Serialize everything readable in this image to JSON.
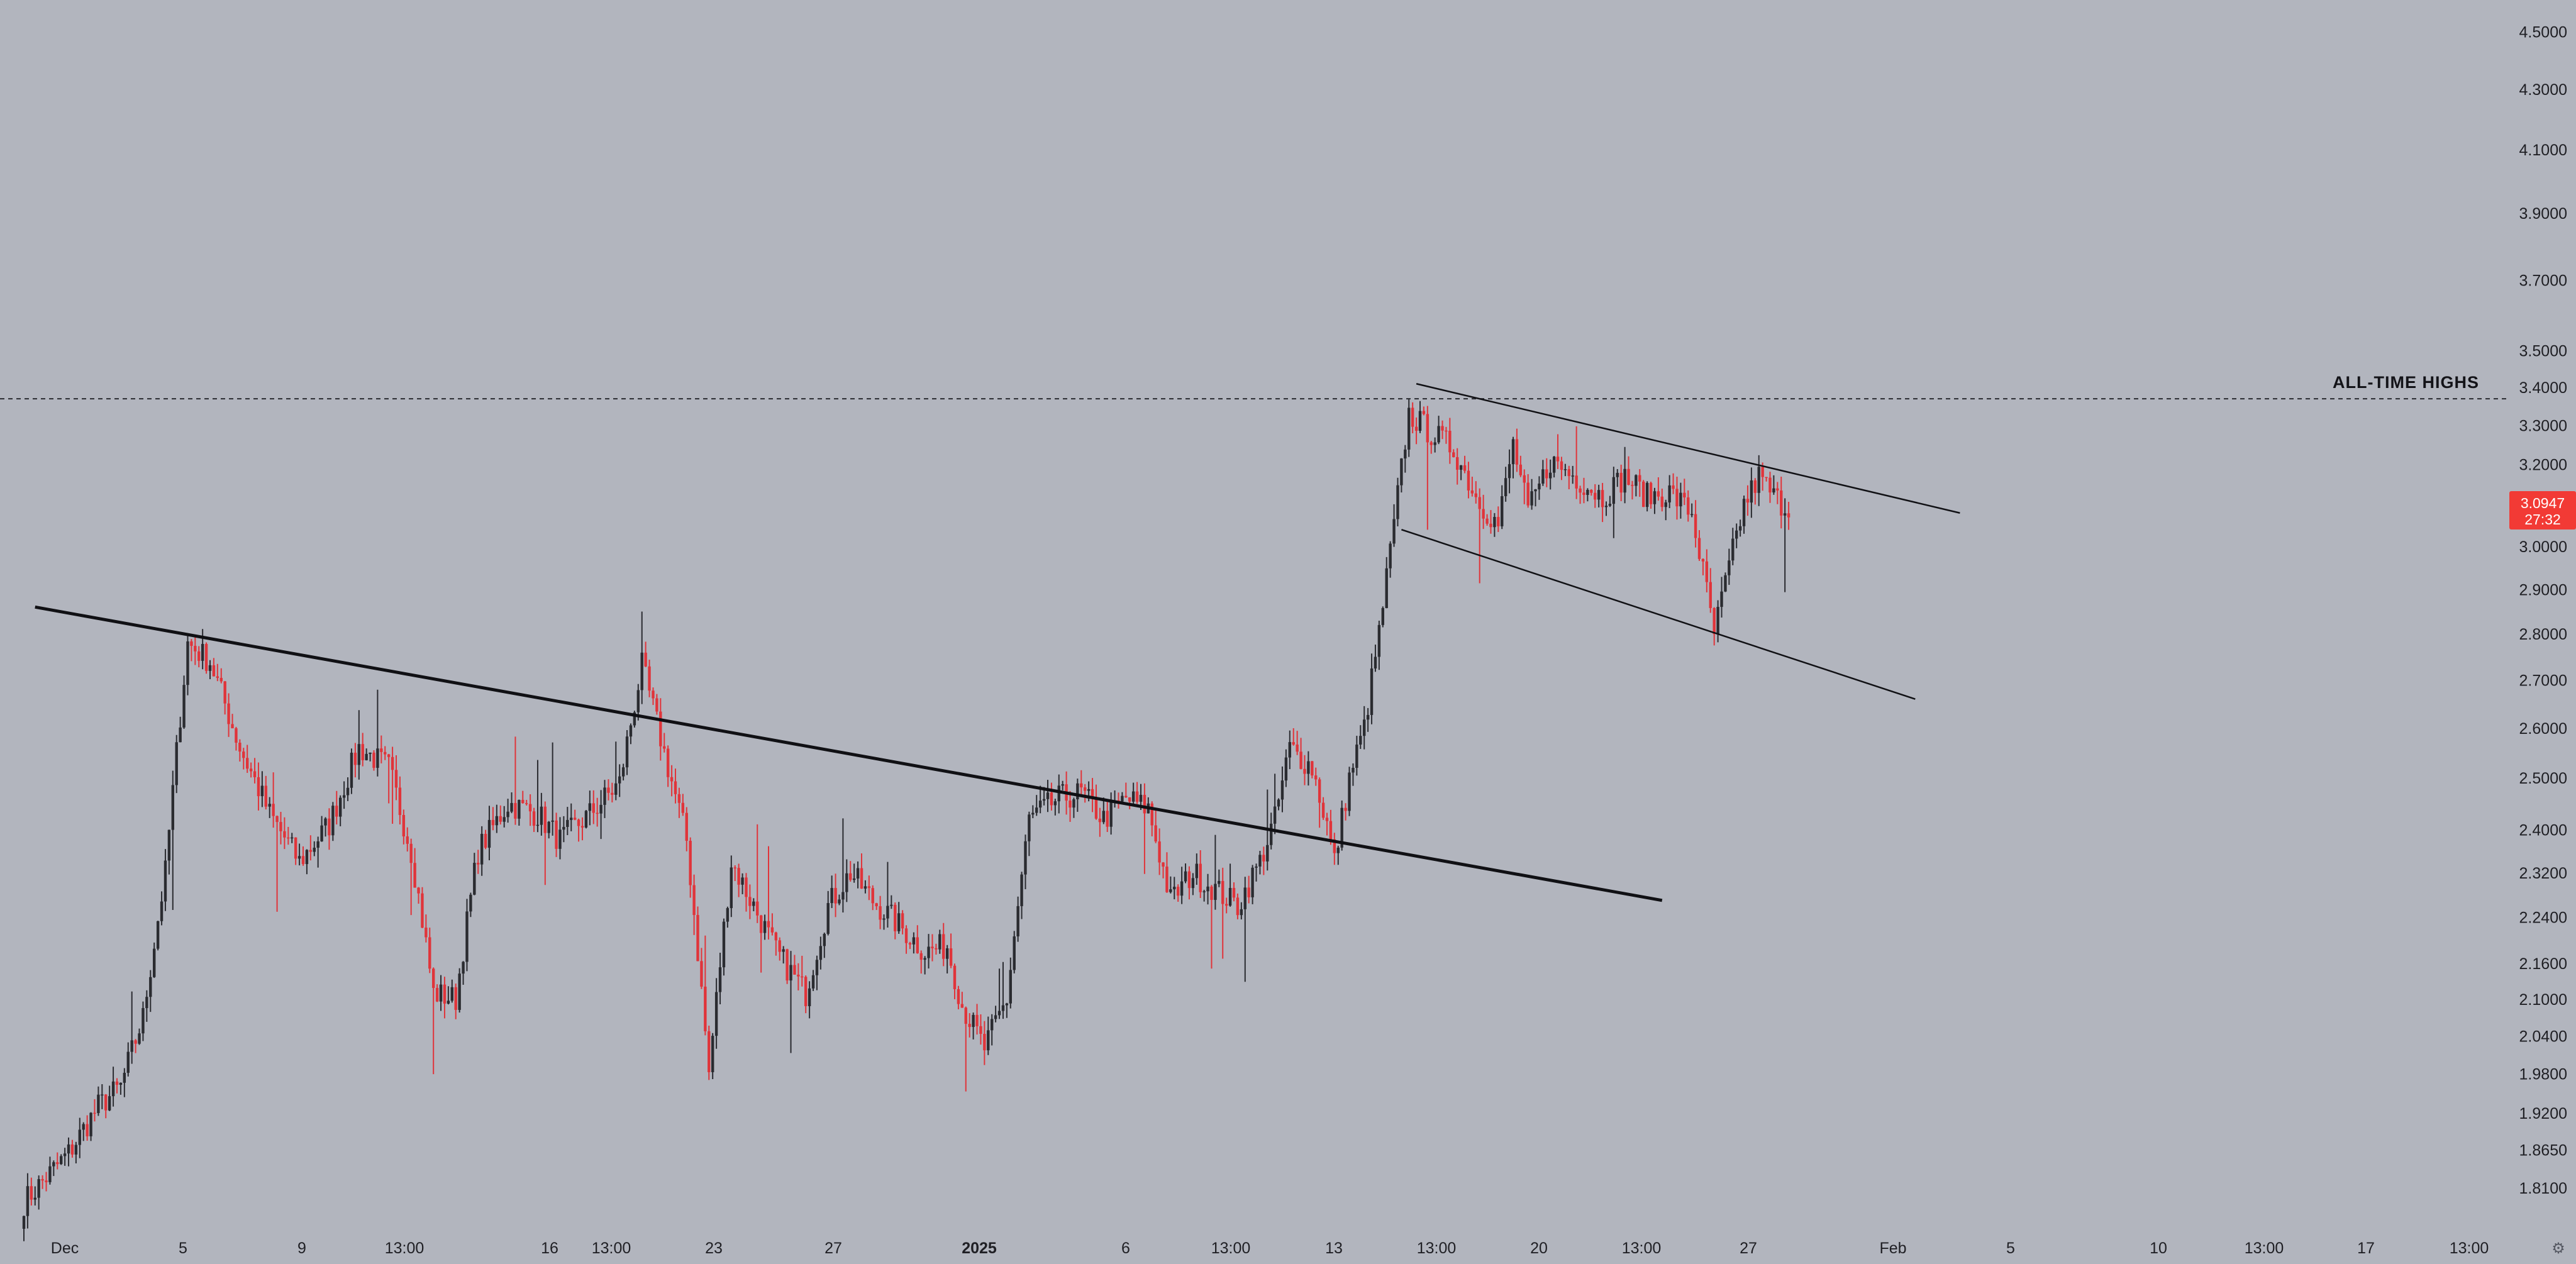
{
  "chart_data": {
    "type": "candlestick",
    "y_axis_ticks": [
      "4.5000",
      "4.3000",
      "4.1000",
      "3.9000",
      "3.7000",
      "3.5000",
      "3.4000",
      "3.3000",
      "3.2000",
      "3.0000",
      "2.9000",
      "2.8000",
      "2.7000",
      "2.6000",
      "2.5000",
      "2.4000",
      "2.3200",
      "2.2400",
      "2.1600",
      "2.1000",
      "2.0400",
      "1.9800",
      "1.9200",
      "1.8650",
      "1.8100"
    ],
    "ylim": [
      1.75,
      4.55
    ],
    "y_scale": "log",
    "x_axis_ticks": [
      {
        "label": "Dec",
        "bold": false
      },
      {
        "label": "5",
        "bold": false
      },
      {
        "label": "9",
        "bold": false
      },
      {
        "label": "13:00",
        "bold": false
      },
      {
        "label": "16",
        "bold": false
      },
      {
        "label": "13:00",
        "bold": false
      },
      {
        "label": "23",
        "bold": false
      },
      {
        "label": "27",
        "bold": false
      },
      {
        "label": "2025",
        "bold": true
      },
      {
        "label": "6",
        "bold": false
      },
      {
        "label": "13:00",
        "bold": false
      },
      {
        "label": "13",
        "bold": false
      },
      {
        "label": "13:00",
        "bold": false
      },
      {
        "label": "20",
        "bold": false
      },
      {
        "label": "13:00",
        "bold": false
      },
      {
        "label": "27",
        "bold": false
      },
      {
        "label": "Feb",
        "bold": false
      },
      {
        "label": "5",
        "bold": false
      },
      {
        "label": "10",
        "bold": false
      },
      {
        "label": "13:00",
        "bold": false
      },
      {
        "label": "17",
        "bold": false
      },
      {
        "label": "13:00",
        "bold": false
      }
    ],
    "price_path_keypoints": [
      [
        0,
        1.79
      ],
      [
        12,
        1.86
      ],
      [
        20,
        1.93
      ],
      [
        26,
        1.96
      ],
      [
        32,
        2.07
      ],
      [
        38,
        2.32
      ],
      [
        44,
        2.78
      ],
      [
        50,
        2.74
      ],
      [
        58,
        2.56
      ],
      [
        66,
        2.43
      ],
      [
        74,
        2.34
      ],
      [
        82,
        2.41
      ],
      [
        90,
        2.56
      ],
      [
        98,
        2.52
      ],
      [
        104,
        2.36
      ],
      [
        110,
        2.11
      ],
      [
        116,
        2.1
      ],
      [
        122,
        2.36
      ],
      [
        130,
        2.45
      ],
      [
        138,
        2.43
      ],
      [
        144,
        2.38
      ],
      [
        152,
        2.43
      ],
      [
        160,
        2.49
      ],
      [
        166,
        2.73
      ],
      [
        172,
        2.55
      ],
      [
        178,
        2.38
      ],
      [
        184,
        1.98
      ],
      [
        190,
        2.34
      ],
      [
        196,
        2.26
      ],
      [
        202,
        2.18
      ],
      [
        210,
        2.11
      ],
      [
        216,
        2.26
      ],
      [
        222,
        2.32
      ],
      [
        228,
        2.27
      ],
      [
        236,
        2.22
      ],
      [
        242,
        2.18
      ],
      [
        248,
        2.19
      ],
      [
        252,
        2.09
      ],
      [
        258,
        2.02
      ],
      [
        264,
        2.1
      ],
      [
        270,
        2.42
      ],
      [
        278,
        2.46
      ],
      [
        284,
        2.47
      ],
      [
        290,
        2.42
      ],
      [
        296,
        2.46
      ],
      [
        302,
        2.44
      ],
      [
        308,
        2.27
      ],
      [
        314,
        2.32
      ],
      [
        320,
        2.29
      ],
      [
        326,
        2.26
      ],
      [
        332,
        2.34
      ],
      [
        336,
        2.42
      ],
      [
        340,
        2.56
      ],
      [
        346,
        2.52
      ],
      [
        350,
        2.41
      ],
      [
        352,
        2.34
      ],
      [
        356,
        2.5
      ],
      [
        360,
        2.6
      ],
      [
        364,
        2.8
      ],
      [
        368,
        3.05
      ],
      [
        372,
        3.33
      ],
      [
        378,
        3.28
      ],
      [
        384,
        3.24
      ],
      [
        390,
        3.12
      ],
      [
        396,
        3.05
      ],
      [
        400,
        3.25
      ],
      [
        404,
        3.08
      ],
      [
        410,
        3.21
      ],
      [
        418,
        3.16
      ],
      [
        424,
        3.12
      ],
      [
        430,
        3.17
      ],
      [
        436,
        3.12
      ],
      [
        442,
        3.13
      ],
      [
        448,
        3.08
      ],
      [
        454,
        2.8
      ],
      [
        458,
        2.95
      ],
      [
        462,
        3.1
      ],
      [
        466,
        3.17
      ],
      [
        470,
        3.12
      ],
      [
        474,
        3.09
      ]
    ],
    "annotations": [
      {
        "text": "ALL-TIME HIGHS",
        "type": "horizontal-line",
        "value": 3.37,
        "style": "dashed"
      },
      {
        "type": "trendline",
        "style": "thick",
        "from": [
          3,
          2.86
        ],
        "to": [
          440,
          2.27
        ]
      },
      {
        "type": "trendline",
        "style": "thin",
        "from": [
          374,
          3.41
        ],
        "to": [
          520,
          3.08
        ]
      },
      {
        "type": "trendline",
        "style": "thin",
        "from": [
          370,
          3.04
        ],
        "to": [
          508,
          2.66
        ]
      }
    ],
    "last_price": {
      "value": "3.0947",
      "countdown": "27:32"
    },
    "colors": {
      "background": "#b2b5be",
      "up": "#2a2b30",
      "down": "#e0343a",
      "wick_up": "#2a2b30",
      "wick_down": "#e0343a",
      "price_tag": "#f23a35",
      "axis_text": "#1f1f24"
    },
    "settings_icon": "gear-icon"
  }
}
